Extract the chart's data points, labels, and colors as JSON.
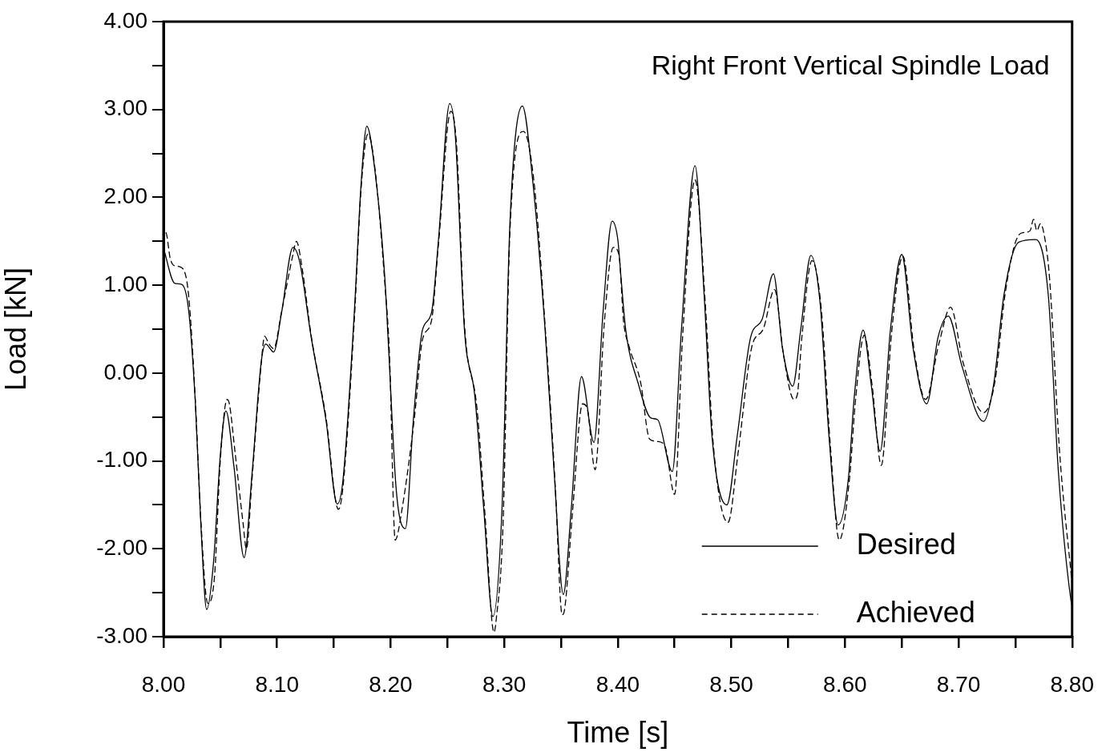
{
  "chart_data": {
    "type": "line",
    "title": "Right Front Vertical Spindle Load",
    "xlabel": "Time [s]",
    "ylabel": "Load [kN]",
    "xlim": [
      8.0,
      8.8
    ],
    "ylim": [
      -3,
      4
    ],
    "xticks": [
      {
        "value": 8.0,
        "label": "8.00"
      },
      {
        "value": 8.05,
        "label": null
      },
      {
        "value": 8.1,
        "label": "8.10"
      },
      {
        "value": 8.15,
        "label": null
      },
      {
        "value": 8.2,
        "label": "8.20"
      },
      {
        "value": 8.25,
        "label": null
      },
      {
        "value": 8.3,
        "label": "8.30"
      },
      {
        "value": 8.35,
        "label": null
      },
      {
        "value": 8.4,
        "label": "8.40"
      },
      {
        "value": 8.45,
        "label": null
      },
      {
        "value": 8.5,
        "label": "8.50"
      },
      {
        "value": 8.55,
        "label": null
      },
      {
        "value": 8.6,
        "label": "8.60"
      },
      {
        "value": 8.65,
        "label": null
      },
      {
        "value": 8.7,
        "label": "8.70"
      },
      {
        "value": 8.75,
        "label": null
      },
      {
        "value": 8.8,
        "label": "8.80"
      }
    ],
    "yticks": [
      {
        "value": -3,
        "label": "-3.00"
      },
      {
        "value": -2.5,
        "label": null
      },
      {
        "value": -2,
        "label": "-2.00"
      },
      {
        "value": -1.5,
        "label": null
      },
      {
        "value": -1,
        "label": "-1.00"
      },
      {
        "value": -0.5,
        "label": null
      },
      {
        "value": 0,
        "label": "0.00"
      },
      {
        "value": 0.5,
        "label": null
      },
      {
        "value": 1,
        "label": "1.00"
      },
      {
        "value": 1.5,
        "label": null
      },
      {
        "value": 2,
        "label": "2.00"
      },
      {
        "value": 2.5,
        "label": null
      },
      {
        "value": 3,
        "label": "3.00"
      },
      {
        "value": 3.5,
        "label": null
      },
      {
        "value": 4,
        "label": "4.00"
      }
    ],
    "grid": false,
    "legend": "bottom right",
    "marker": "none",
    "series": [
      {
        "name": "Desired",
        "color": "#000000",
        "line_style": "solid",
        "x": [
          8.0,
          8.01,
          8.016,
          8.022,
          8.028,
          8.033,
          8.038,
          8.044,
          8.05,
          8.055,
          8.062,
          8.071,
          8.078,
          8.086,
          8.09,
          8.097,
          8.104,
          8.114,
          8.12,
          8.13,
          8.143,
          8.153,
          8.158,
          8.168,
          8.174,
          8.179,
          8.186,
          8.195,
          8.198,
          8.205,
          8.213,
          8.22,
          8.228,
          8.236,
          8.242,
          8.252,
          8.257,
          8.265,
          8.274,
          8.282,
          8.29,
          8.298,
          8.305,
          8.316,
          8.325,
          8.336,
          8.344,
          8.352,
          8.359,
          8.368,
          8.379,
          8.387,
          8.395,
          8.4,
          8.403,
          8.407,
          8.418,
          8.429,
          8.435,
          8.448,
          8.456,
          8.468,
          8.476,
          8.483,
          8.496,
          8.505,
          8.517,
          8.527,
          8.537,
          8.545,
          8.554,
          8.561,
          8.57,
          8.578,
          8.586,
          8.594,
          8.603,
          8.608,
          8.616,
          8.623,
          8.631,
          8.64,
          8.65,
          8.66,
          8.672,
          8.682,
          8.691,
          8.703,
          8.722,
          8.731,
          8.74,
          8.753,
          8.768,
          8.779,
          8.788,
          8.799,
          8.8
        ],
        "values": [
          1.42,
          1.02,
          1.01,
          0.73,
          -0.33,
          -1.75,
          -2.69,
          -2.16,
          -0.94,
          -0.43,
          -1.06,
          -2.1,
          -1.14,
          0.12,
          0.33,
          0.24,
          0.69,
          1.43,
          1.26,
          0.41,
          -0.53,
          -1.49,
          -1.22,
          0.69,
          2.16,
          2.81,
          2.32,
          1.06,
          0.33,
          -1.34,
          -1.77,
          -0.53,
          0.49,
          0.69,
          1.5,
          3.07,
          2.69,
          0.49,
          -0.25,
          -1.55,
          -2.77,
          -1.55,
          1.7,
          3.04,
          2.2,
          0.49,
          -1.14,
          -2.52,
          -1.55,
          -0.04,
          -0.79,
          0.69,
          1.73,
          1.52,
          1.06,
          0.49,
          -0.12,
          -0.51,
          -0.53,
          -1.12,
          0.49,
          2.36,
          0.89,
          -0.73,
          -1.5,
          -0.73,
          0.41,
          0.61,
          1.13,
          0.28,
          -0.15,
          0.49,
          1.34,
          0.81,
          -0.73,
          -1.73,
          -1.2,
          -0.3,
          0.49,
          -0.12,
          -0.89,
          0.49,
          1.35,
          0.28,
          -0.35,
          0.41,
          0.65,
          0.08,
          -0.55,
          -0.12,
          0.89,
          1.49,
          1.52,
          0.89,
          -1.14,
          -2.59,
          -2.65
        ]
      },
      {
        "name": "Achieved",
        "color": "#000000",
        "line_style": "dashed",
        "x": [
          8.0,
          8.002,
          8.006,
          8.01,
          8.016,
          8.022,
          8.028,
          8.033,
          8.039,
          8.045,
          8.05,
          8.056,
          8.058,
          8.063,
          8.07,
          8.073,
          8.078,
          8.086,
          8.089,
          8.093,
          8.097,
          8.104,
          8.114,
          8.117,
          8.122,
          8.13,
          8.143,
          8.154,
          8.158,
          8.168,
          8.174,
          8.18,
          8.186,
          8.195,
          8.199,
          8.204,
          8.21,
          8.221,
          8.228,
          8.236,
          8.242,
          8.253,
          8.258,
          8.265,
          8.276,
          8.283,
          8.291,
          8.293,
          8.299,
          8.305,
          8.317,
          8.326,
          8.337,
          8.345,
          8.351,
          8.353,
          8.36,
          8.369,
          8.373,
          8.38,
          8.388,
          8.396,
          8.401,
          8.405,
          8.41,
          8.42,
          8.428,
          8.436,
          8.442,
          8.45,
          8.457,
          8.468,
          8.477,
          8.484,
          8.497,
          8.506,
          8.518,
          8.528,
          8.538,
          8.546,
          8.555,
          8.558,
          8.562,
          8.571,
          8.579,
          8.587,
          8.595,
          8.604,
          8.609,
          8.617,
          8.624,
          8.632,
          8.641,
          8.651,
          8.661,
          8.671,
          8.683,
          8.693,
          8.704,
          8.722,
          8.732,
          8.741,
          8.752,
          8.758,
          8.763,
          8.766,
          8.769,
          8.772,
          8.775,
          8.78,
          8.789,
          8.8
        ],
        "values": [
          1.5,
          1.6,
          1.3,
          1.22,
          1.2,
          0.9,
          -0.3,
          -1.7,
          -2.62,
          -2.3,
          -1.0,
          -0.3,
          -0.35,
          -0.9,
          -1.7,
          -2.0,
          -1.2,
          0.1,
          0.42,
          0.33,
          0.28,
          0.7,
          1.35,
          1.5,
          1.2,
          0.43,
          -0.5,
          -1.55,
          -1.3,
          0.6,
          2.1,
          2.72,
          2.35,
          1.0,
          0.2,
          -1.9,
          -1.55,
          -0.5,
          0.38,
          0.6,
          1.45,
          2.98,
          2.6,
          0.55,
          -0.4,
          -1.6,
          -2.95,
          -2.8,
          -1.7,
          1.6,
          2.75,
          2.2,
          0.35,
          -1.3,
          -2.75,
          -2.7,
          -1.6,
          -0.35,
          -0.4,
          -1.1,
          0.55,
          1.43,
          1.35,
          0.6,
          0.3,
          -0.1,
          -0.75,
          -0.78,
          -0.85,
          -1.38,
          0.4,
          2.2,
          0.8,
          -0.8,
          -1.7,
          -0.9,
          0.3,
          0.5,
          0.95,
          0.2,
          -0.3,
          -0.25,
          0.4,
          1.28,
          0.75,
          -0.8,
          -1.9,
          -1.2,
          -0.35,
          0.43,
          -0.15,
          -1.05,
          0.45,
          1.33,
          0.25,
          -0.3,
          0.35,
          0.75,
          0.12,
          -0.45,
          -0.1,
          0.9,
          1.55,
          1.6,
          1.62,
          1.75,
          1.62,
          1.7,
          1.6,
          1.1,
          -0.9,
          -2.4
        ]
      }
    ]
  }
}
